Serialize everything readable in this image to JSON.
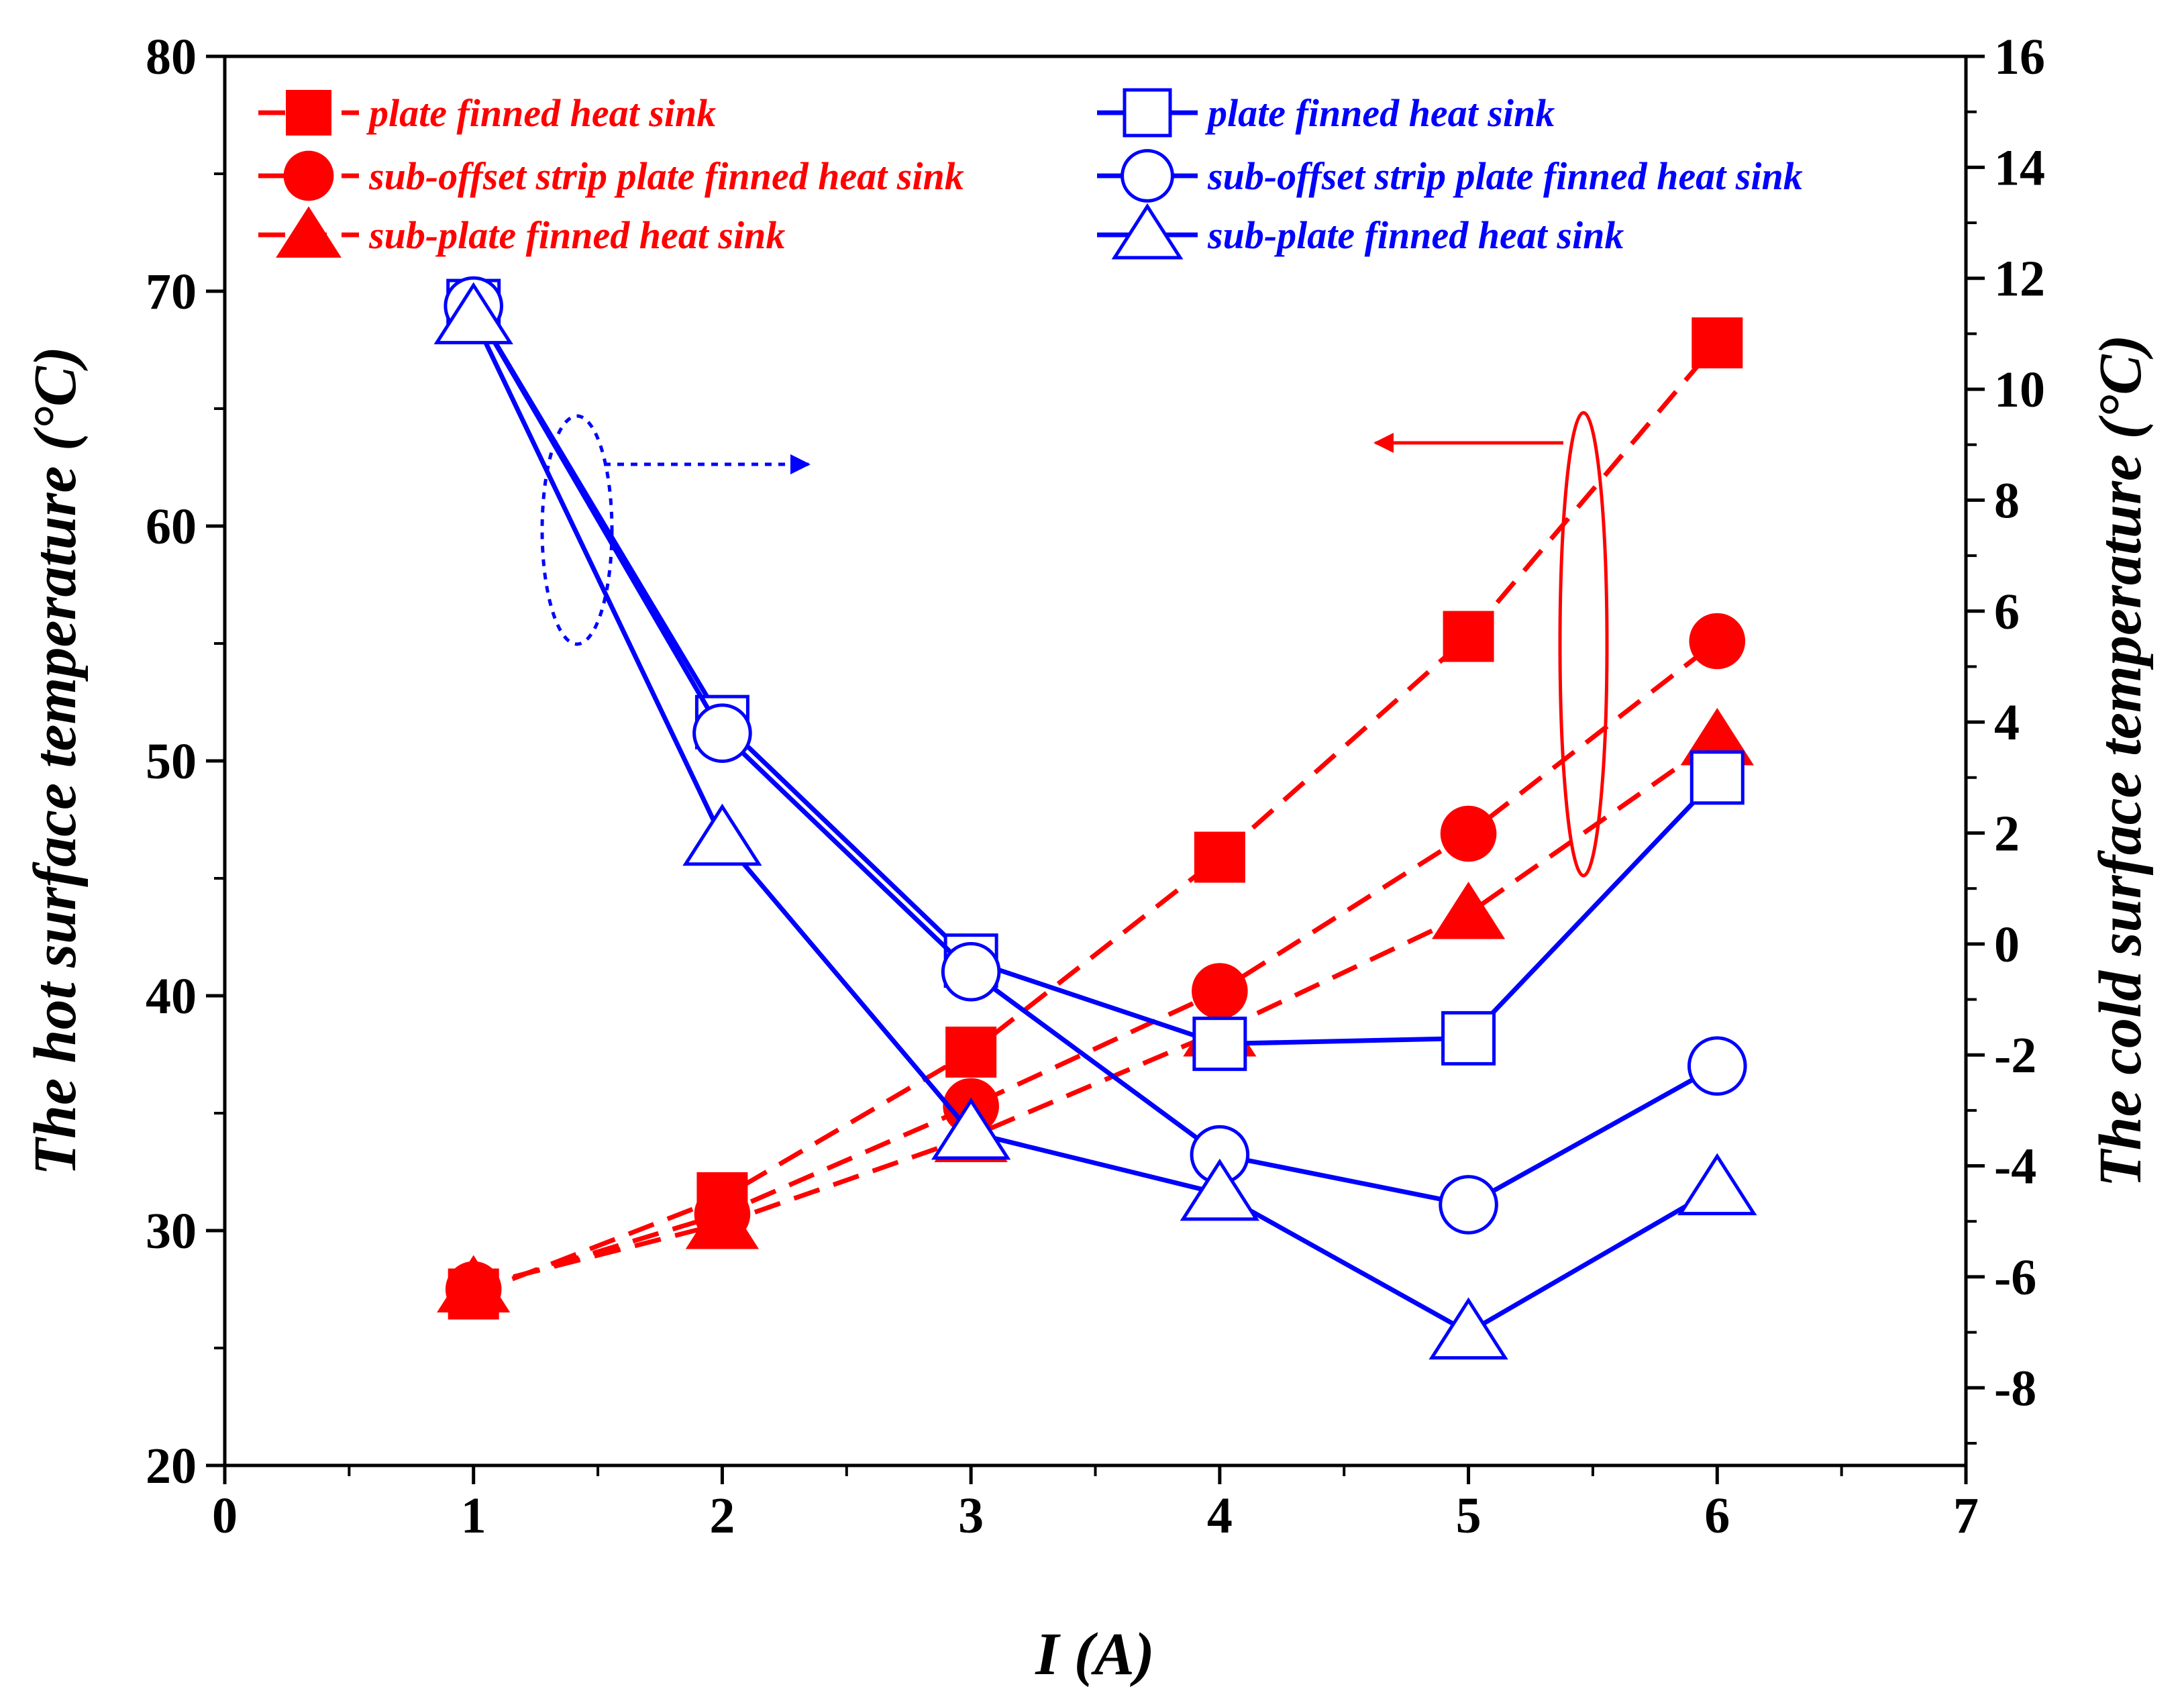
{
  "chart_data": {
    "type": "line",
    "xlabel": "I (A)",
    "ylabel_left": "The hot surface temperature (°C)",
    "ylabel_right": "The cold surface temperature (°C)",
    "xlim": [
      0,
      7
    ],
    "ylim_left": [
      20,
      80
    ],
    "ylim_right": [
      -9.4,
      16
    ],
    "x_ticks": [
      0,
      1,
      2,
      3,
      4,
      5,
      6,
      7
    ],
    "y_left_ticks": [
      20,
      30,
      40,
      50,
      60,
      70,
      80
    ],
    "y_right_ticks": [
      -8,
      -6,
      -4,
      -2,
      0,
      2,
      4,
      6,
      8,
      10,
      12,
      14,
      16
    ],
    "x": [
      1,
      2,
      3,
      4,
      5,
      6
    ],
    "series": [
      {
        "name": "plate finned heat sink",
        "axis": "left",
        "group": "hot",
        "color": "#ff0000",
        "marker": "square",
        "filled": true,
        "values": [
          27.3,
          31.4,
          37.6,
          45.9,
          55.3,
          67.8
        ]
      },
      {
        "name": "sub-offset strip plate finned heat sink",
        "axis": "left",
        "group": "hot",
        "color": "#ff0000",
        "marker": "circle",
        "filled": true,
        "values": [
          27.5,
          30.7,
          35.3,
          40.2,
          46.9,
          55.1
        ]
      },
      {
        "name": "sub-plate finned heat sink",
        "axis": "left",
        "group": "hot",
        "color": "#ff0000",
        "marker": "triangle",
        "filled": true,
        "values": [
          27.6,
          30.3,
          34.0,
          38.5,
          43.5,
          50.9
        ]
      },
      {
        "name": "plate finned heat sink",
        "axis": "right",
        "group": "cold",
        "color": "#0000ff",
        "marker": "square",
        "filled": false,
        "values": [
          11.5,
          4.0,
          -0.3,
          -1.8,
          -1.7,
          3.0
        ]
      },
      {
        "name": "sub-offset strip plate finned heat sink",
        "axis": "right",
        "group": "cold",
        "color": "#0000ff",
        "marker": "circle",
        "filled": false,
        "values": [
          11.5,
          3.8,
          -0.5,
          -3.8,
          -4.7,
          -2.2
        ]
      },
      {
        "name": "sub-plate finned heat sink",
        "axis": "right",
        "group": "cold",
        "color": "#0000ff",
        "marker": "triangle",
        "filled": false,
        "values": [
          11.3,
          1.9,
          -3.4,
          -4.5,
          -7.0,
          -4.4
        ]
      }
    ],
    "legend_placement": "top, two columns",
    "grid": false,
    "annotations": [
      {
        "type": "ellipse-arrow",
        "color": "#ff0000",
        "style": "solid",
        "points_to": "left axis"
      },
      {
        "type": "ellipse-arrow",
        "color": "#0000ff",
        "style": "dotted",
        "points_to": "right axis"
      }
    ]
  }
}
